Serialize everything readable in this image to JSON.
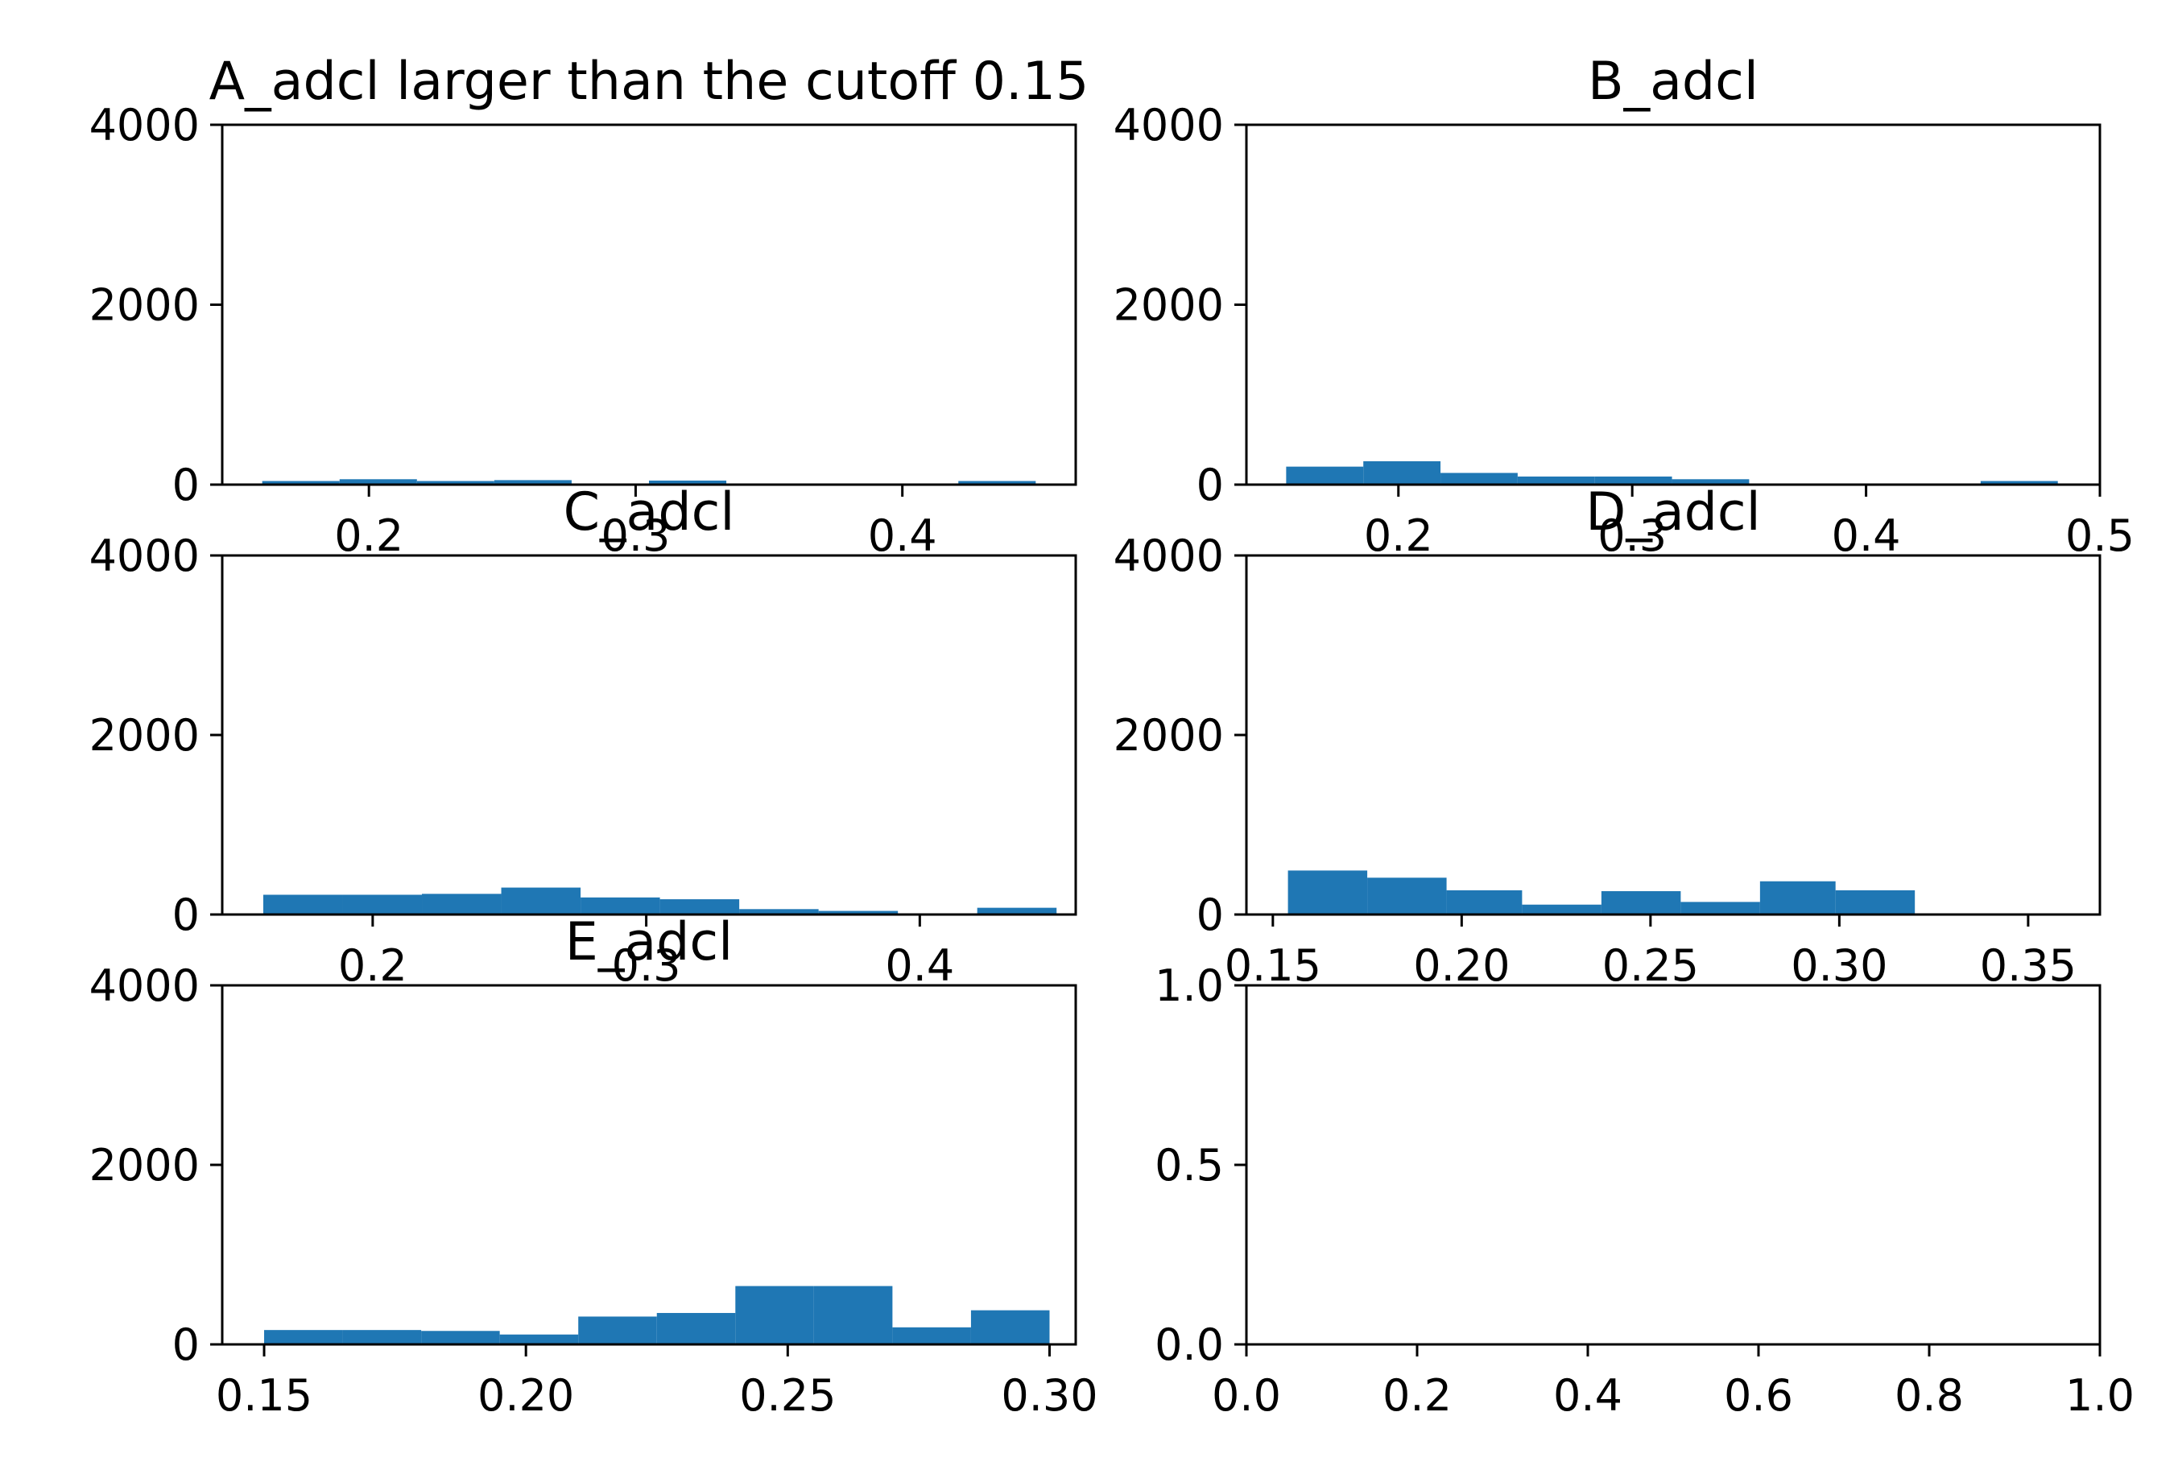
{
  "chart_data": [
    {
      "type": "bar",
      "title": "A_adcl larger than the cutoff 0.15",
      "xlim": [
        0.145,
        0.465
      ],
      "ylim": [
        0,
        4000
      ],
      "xticks": [
        0.2,
        0.3,
        0.4
      ],
      "xtick_labels": [
        "0.2",
        "0.3",
        "0.4"
      ],
      "yticks": [
        0,
        2000,
        4000
      ],
      "ytick_labels": [
        "0",
        "2000",
        "4000"
      ],
      "bins": [
        {
          "x0": 0.16,
          "x1": 0.189,
          "value": 40
        },
        {
          "x0": 0.189,
          "x1": 0.218,
          "value": 60
        },
        {
          "x0": 0.218,
          "x1": 0.247,
          "value": 40
        },
        {
          "x0": 0.247,
          "x1": 0.276,
          "value": 50
        },
        {
          "x0": 0.276,
          "x1": 0.305,
          "value": 10
        },
        {
          "x0": 0.305,
          "x1": 0.334,
          "value": 45
        },
        {
          "x0": 0.334,
          "x1": 0.363,
          "value": 10
        },
        {
          "x0": 0.363,
          "x1": 0.392,
          "value": 0
        },
        {
          "x0": 0.392,
          "x1": 0.421,
          "value": 0
        },
        {
          "x0": 0.421,
          "x1": 0.45,
          "value": 40
        }
      ]
    },
    {
      "type": "bar",
      "title": "B_adcl",
      "xlim": [
        0.135,
        0.5
      ],
      "ylim": [
        0,
        4000
      ],
      "xticks": [
        0.2,
        0.3,
        0.4,
        0.5
      ],
      "xtick_labels": [
        "0.2",
        "0.3",
        "0.4",
        "0.5"
      ],
      "yticks": [
        0,
        2000,
        4000
      ],
      "ytick_labels": [
        "0",
        "2000",
        "4000"
      ],
      "bins": [
        {
          "x0": 0.152,
          "x1": 0.185,
          "value": 200
        },
        {
          "x0": 0.185,
          "x1": 0.218,
          "value": 260
        },
        {
          "x0": 0.218,
          "x1": 0.251,
          "value": 130
        },
        {
          "x0": 0.251,
          "x1": 0.284,
          "value": 90
        },
        {
          "x0": 0.284,
          "x1": 0.317,
          "value": 90
        },
        {
          "x0": 0.317,
          "x1": 0.35,
          "value": 60
        },
        {
          "x0": 0.35,
          "x1": 0.383,
          "value": 0
        },
        {
          "x0": 0.383,
          "x1": 0.416,
          "value": 0
        },
        {
          "x0": 0.416,
          "x1": 0.449,
          "value": 0
        },
        {
          "x0": 0.449,
          "x1": 0.482,
          "value": 40
        }
      ]
    },
    {
      "type": "bar",
      "title": "C_adcl",
      "xlim": [
        0.145,
        0.457
      ],
      "ylim": [
        0,
        4000
      ],
      "xticks": [
        0.2,
        0.3,
        0.4
      ],
      "xtick_labels": [
        "0.2",
        "0.3",
        "0.4"
      ],
      "yticks": [
        0,
        2000,
        4000
      ],
      "ytick_labels": [
        "0",
        "2000",
        "4000"
      ],
      "bins": [
        {
          "x0": 0.16,
          "x1": 0.189,
          "value": 220
        },
        {
          "x0": 0.189,
          "x1": 0.218,
          "value": 220
        },
        {
          "x0": 0.218,
          "x1": 0.247,
          "value": 230
        },
        {
          "x0": 0.247,
          "x1": 0.276,
          "value": 300
        },
        {
          "x0": 0.276,
          "x1": 0.305,
          "value": 190
        },
        {
          "x0": 0.305,
          "x1": 0.334,
          "value": 170
        },
        {
          "x0": 0.334,
          "x1": 0.363,
          "value": 60
        },
        {
          "x0": 0.363,
          "x1": 0.392,
          "value": 40
        },
        {
          "x0": 0.392,
          "x1": 0.421,
          "value": 0
        },
        {
          "x0": 0.421,
          "x1": 0.45,
          "value": 75
        }
      ]
    },
    {
      "type": "bar",
      "title": "D_adcl",
      "xlim": [
        0.143,
        0.369
      ],
      "ylim": [
        0,
        4000
      ],
      "xticks": [
        0.15,
        0.2,
        0.25,
        0.3,
        0.35
      ],
      "xtick_labels": [
        "0.15",
        "0.20",
        "0.25",
        "0.30",
        "0.35"
      ],
      "yticks": [
        0,
        2000,
        4000
      ],
      "ytick_labels": [
        "0",
        "2000",
        "4000"
      ],
      "bins": [
        {
          "x0": 0.154,
          "x1": 0.175,
          "value": 490
        },
        {
          "x0": 0.175,
          "x1": 0.196,
          "value": 410
        },
        {
          "x0": 0.196,
          "x1": 0.216,
          "value": 270
        },
        {
          "x0": 0.216,
          "x1": 0.237,
          "value": 110
        },
        {
          "x0": 0.237,
          "x1": 0.258,
          "value": 260
        },
        {
          "x0": 0.258,
          "x1": 0.279,
          "value": 140
        },
        {
          "x0": 0.279,
          "x1": 0.299,
          "value": 370
        },
        {
          "x0": 0.299,
          "x1": 0.32,
          "value": 270
        }
      ]
    },
    {
      "type": "bar",
      "title": "E_adcl",
      "xlim": [
        0.142,
        0.305
      ],
      "ylim": [
        0,
        4000
      ],
      "xticks": [
        0.15,
        0.2,
        0.25,
        0.3
      ],
      "xtick_labels": [
        "0.15",
        "0.20",
        "0.25",
        "0.30"
      ],
      "yticks": [
        0,
        2000,
        4000
      ],
      "ytick_labels": [
        "0",
        "2000",
        "4000"
      ],
      "bins": [
        {
          "x0": 0.15,
          "x1": 0.165,
          "value": 160
        },
        {
          "x0": 0.165,
          "x1": 0.18,
          "value": 160
        },
        {
          "x0": 0.18,
          "x1": 0.195,
          "value": 150
        },
        {
          "x0": 0.195,
          "x1": 0.21,
          "value": 110
        },
        {
          "x0": 0.21,
          "x1": 0.225,
          "value": 310
        },
        {
          "x0": 0.225,
          "x1": 0.24,
          "value": 350
        },
        {
          "x0": 0.24,
          "x1": 0.255,
          "value": 650
        },
        {
          "x0": 0.255,
          "x1": 0.27,
          "value": 650
        },
        {
          "x0": 0.27,
          "x1": 0.285,
          "value": 190
        },
        {
          "x0": 0.285,
          "x1": 0.3,
          "value": 380
        }
      ]
    },
    {
      "type": "bar",
      "title": "",
      "xlim": [
        0,
        1
      ],
      "ylim": [
        0,
        1
      ],
      "xticks": [
        0,
        0.2,
        0.4,
        0.6,
        0.8,
        1.0
      ],
      "xtick_labels": [
        "0.0",
        "0.2",
        "0.4",
        "0.6",
        "0.8",
        "1.0"
      ],
      "yticks": [
        0,
        0.5,
        1.0
      ],
      "ytick_labels": [
        "0.0",
        "0.5",
        "1.0"
      ],
      "bins": []
    }
  ],
  "colors": {
    "bar": "#1f77b4",
    "axis": "#000000",
    "background": "#ffffff"
  }
}
